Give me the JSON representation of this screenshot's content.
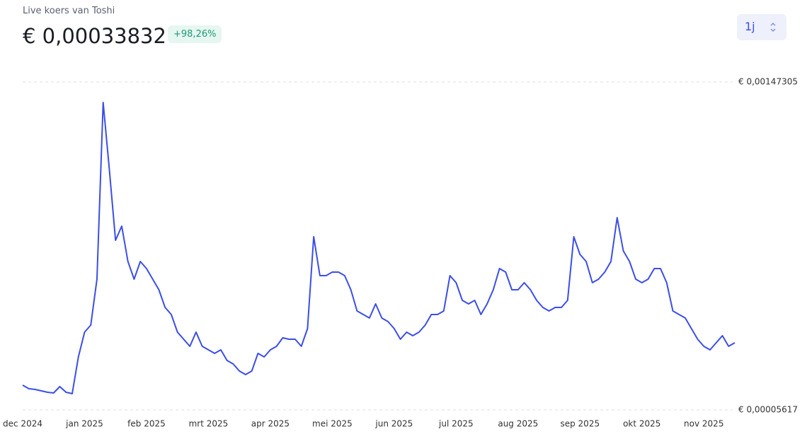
{
  "header": {
    "label": "Live koers van Toshi",
    "price": "€ 0,00033832",
    "change": "+98,26%"
  },
  "period_button": "1j",
  "chart_data": {
    "type": "line",
    "categories": [
      "dec 2024",
      null,
      null,
      null,
      null,
      null,
      null,
      null,
      null,
      null,
      "jan 2025",
      null,
      null,
      null,
      null,
      null,
      null,
      null,
      null,
      null,
      "feb 2025",
      null,
      null,
      null,
      null,
      null,
      null,
      null,
      null,
      null,
      "mrt 2025",
      null,
      null,
      null,
      null,
      null,
      null,
      null,
      null,
      null,
      "apr 2025",
      null,
      null,
      null,
      null,
      null,
      null,
      null,
      null,
      null,
      "mei 2025",
      null,
      null,
      null,
      null,
      null,
      null,
      null,
      null,
      null,
      "jun 2025",
      null,
      null,
      null,
      null,
      null,
      null,
      null,
      null,
      null,
      "jul 2025",
      null,
      null,
      null,
      null,
      null,
      null,
      null,
      null,
      null,
      "aug 2025",
      null,
      null,
      null,
      null,
      null,
      null,
      null,
      null,
      null,
      "sep 2025",
      null,
      null,
      null,
      null,
      null,
      null,
      null,
      null,
      null,
      "okt 2025",
      null,
      null,
      null,
      null,
      null,
      null,
      null,
      null,
      null,
      "nov 2025",
      null,
      null,
      null,
      null,
      null
    ],
    "series": [
      {
        "name": "Toshi",
        "color": "#3b4ee6",
        "values": [
          0.00016305,
          0.00014778,
          0.00014473,
          0.00013862,
          0.00013251,
          0.00012946,
          0.00015694,
          0.00013251,
          0.0001264,
          0.00028519,
          0.00039207,
          0.0004226,
          0.00062109,
          0.00138449,
          0.00109439,
          0.00078903,
          0.00085011,
          0.00069743,
          0.00062109,
          0.00069743,
          0.00066689,
          0.00062109,
          0.00057528,
          0.00049894,
          0.00046841,
          0.00039207,
          0.00036153,
          0.00033099,
          0.00039207,
          0.00033099,
          0.00031573,
          0.00030046,
          0.00031573,
          0.00026992,
          0.00025465,
          0.00022412,
          0.00020885,
          0.00022412,
          0.00030046,
          0.00028519,
          0.00031573,
          0.00033099,
          0.00036764,
          0.00036153,
          0.00036153,
          0.00033099,
          0.00040733,
          0.0008043,
          0.00063635,
          0.00063635,
          0.00065162,
          0.00065162,
          0.00063635,
          0.00057528,
          0.00048367,
          0.00046841,
          0.00045314,
          0.00051421,
          0.00045314,
          0.00043787,
          0.00040733,
          0.00036153,
          0.00039207,
          0.0003768,
          0.00039207,
          0.0004226,
          0.00046841,
          0.00046841,
          0.00048367,
          0.00063635,
          0.00060582,
          0.00052948,
          0.00051421,
          0.00052948,
          0.00046841,
          0.00051421,
          0.00057528,
          0.00066689,
          0.00065162,
          0.00057528,
          0.00057528,
          0.00060582,
          0.00057528,
          0.00052948,
          0.00049894,
          0.00048367,
          0.00049894,
          0.00049894,
          0.00052948,
          0.0008043,
          0.00072796,
          0.00069743,
          0.00060582,
          0.00062109,
          0.00065162,
          0.00069743,
          0.00088675,
          0.00074323,
          0.00069743,
          0.00062109,
          0.00060582,
          0.00062109,
          0.00066689,
          0.00066689,
          0.00060582,
          0.00048367,
          0.00046841,
          0.00045314,
          0.00040733,
          0.00036153,
          0.00033099,
          0.00031573,
          0.00034626,
          0.0003768,
          0.00033099,
          0.00034626
        ]
      }
    ],
    "ylim": [
      5.617e-05,
      0.00147305
    ],
    "yticks": [
      {
        "value": 0.00147305,
        "label": "€ 0,00147305"
      },
      {
        "value": 5.617e-05,
        "label": "€ 0,00005617"
      }
    ],
    "grid": true
  }
}
